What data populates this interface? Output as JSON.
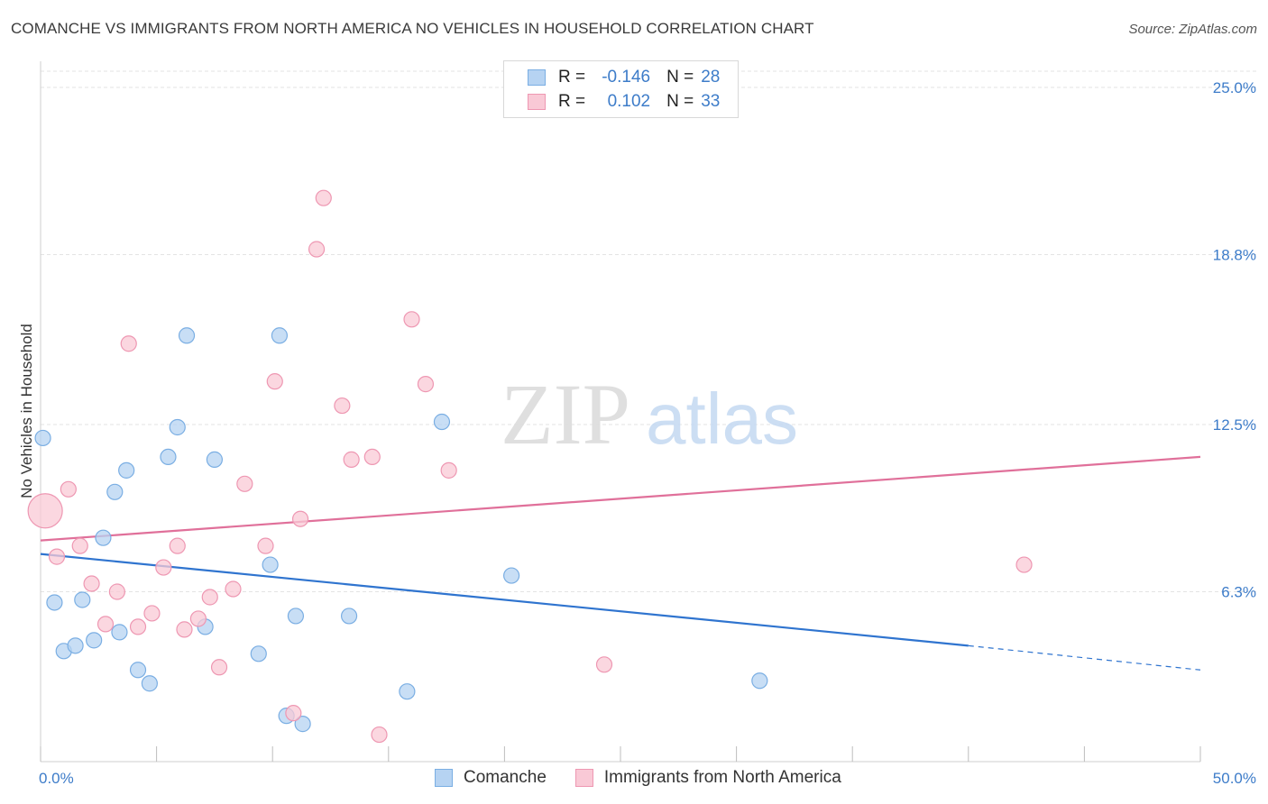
{
  "header": {
    "title": "COMANCHE VS IMMIGRANTS FROM NORTH AMERICA NO VEHICLES IN HOUSEHOLD CORRELATION CHART",
    "source": "Source: ZipAtlas.com"
  },
  "watermark": {
    "zip": "ZIP",
    "atlas": "atlas"
  },
  "legend": {
    "rows": [
      {
        "r_label": "R =",
        "r_value": "-0.146",
        "n_label": "N =",
        "n_value": "28"
      },
      {
        "r_label": "R =",
        "r_value": "0.102",
        "n_label": "N =",
        "n_value": "33"
      }
    ]
  },
  "bottom_legend": {
    "series_a": "Comanche",
    "series_b": "Immigrants from North America"
  },
  "colors": {
    "comanche_fill": "#b6d3f2",
    "comanche_stroke": "#7aaee3",
    "comanche_line": "#2f74cf",
    "immigrants_fill": "#f9c9d6",
    "immigrants_stroke": "#ee97b2",
    "immigrants_line": "#e0709a",
    "tick_text": "#3d7cc9",
    "grid": "#e3e3e3"
  },
  "chart_data": {
    "type": "scatter",
    "title": "COMANCHE VS IMMIGRANTS FROM NORTH AMERICA NO VEHICLES IN HOUSEHOLD CORRELATION CHART",
    "xlabel": "",
    "ylabel": "No Vehicles in Household",
    "xlim": [
      0,
      50
    ],
    "ylim": [
      0,
      25.0
    ],
    "x_tick_labels": [
      "0.0%",
      "50.0%"
    ],
    "y_ticks": [
      6.3,
      12.5,
      18.8,
      25.0
    ],
    "y_tick_labels": [
      "6.3%",
      "12.5%",
      "18.8%",
      "25.0%"
    ],
    "legend_position": "top-center",
    "series": [
      {
        "name": "Comanche",
        "R": -0.146,
        "N": 28,
        "points": [
          [
            0.1,
            12.0
          ],
          [
            0.6,
            5.9
          ],
          [
            1.0,
            4.1
          ],
          [
            1.5,
            4.3
          ],
          [
            1.8,
            6.0
          ],
          [
            2.3,
            4.5
          ],
          [
            2.7,
            8.3
          ],
          [
            3.2,
            10.0
          ],
          [
            3.4,
            4.8
          ],
          [
            3.7,
            10.8
          ],
          [
            4.2,
            3.4
          ],
          [
            4.7,
            2.9
          ],
          [
            5.5,
            11.3
          ],
          [
            5.9,
            12.4
          ],
          [
            6.3,
            15.8
          ],
          [
            7.1,
            5.0
          ],
          [
            7.5,
            11.2
          ],
          [
            9.4,
            4.0
          ],
          [
            9.9,
            7.3
          ],
          [
            10.3,
            15.8
          ],
          [
            10.6,
            1.7
          ],
          [
            11.0,
            5.4
          ],
          [
            11.3,
            1.4
          ],
          [
            13.3,
            5.4
          ],
          [
            15.8,
            2.6
          ],
          [
            17.3,
            12.6
          ],
          [
            20.3,
            6.9
          ],
          [
            31.0,
            3.0
          ]
        ],
        "big_points": [],
        "trend": {
          "x1": 0,
          "y1": 7.7,
          "x2": 40,
          "y2": 4.3,
          "dash_to_x": 50,
          "dash_to_y": 3.4
        }
      },
      {
        "name": "Immigrants from North America",
        "R": 0.102,
        "N": 33,
        "points": [
          [
            0.7,
            7.6
          ],
          [
            1.2,
            10.1
          ],
          [
            1.7,
            8.0
          ],
          [
            2.2,
            6.6
          ],
          [
            2.8,
            5.1
          ],
          [
            3.3,
            6.3
          ],
          [
            3.8,
            15.5
          ],
          [
            4.2,
            5.0
          ],
          [
            4.8,
            5.5
          ],
          [
            5.3,
            7.2
          ],
          [
            5.9,
            8.0
          ],
          [
            6.2,
            4.9
          ],
          [
            6.8,
            5.3
          ],
          [
            7.3,
            6.1
          ],
          [
            7.7,
            3.5
          ],
          [
            8.3,
            6.4
          ],
          [
            8.8,
            10.3
          ],
          [
            9.7,
            8.0
          ],
          [
            10.1,
            14.1
          ],
          [
            10.9,
            1.8
          ],
          [
            11.2,
            9.0
          ],
          [
            11.9,
            19.0
          ],
          [
            12.2,
            20.9
          ],
          [
            13.0,
            13.2
          ],
          [
            13.4,
            11.2
          ],
          [
            14.3,
            11.3
          ],
          [
            14.6,
            1.0
          ],
          [
            16.0,
            16.4
          ],
          [
            16.6,
            14.0
          ],
          [
            17.6,
            10.8
          ],
          [
            24.3,
            3.6
          ],
          [
            42.4,
            7.3
          ]
        ],
        "big_points": [
          [
            0.2,
            9.3
          ]
        ],
        "trend": {
          "x1": 0,
          "y1": 8.2,
          "x2": 50,
          "y2": 11.3
        }
      }
    ]
  }
}
